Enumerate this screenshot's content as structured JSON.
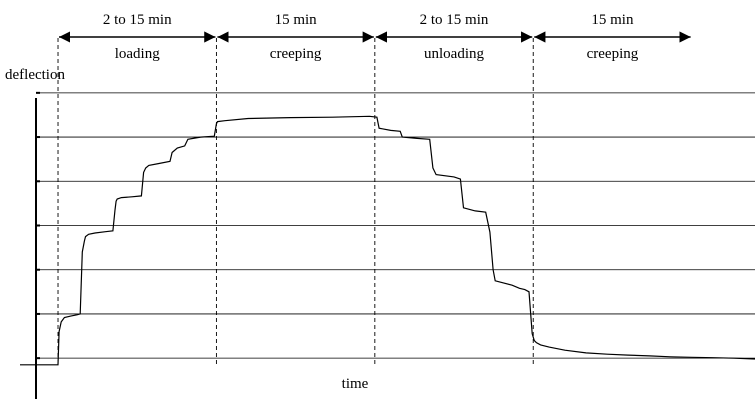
{
  "chart_data": {
    "type": "line",
    "title": "",
    "xlabel": "time",
    "ylabel": "deflection",
    "grid": true,
    "phases": [
      {
        "label": "loading",
        "duration": "2 to 15 min",
        "start": 0,
        "end": 15
      },
      {
        "label": "creeping",
        "duration": "15 min",
        "start": 15,
        "end": 30
      },
      {
        "label": "unloading",
        "duration": "2 to 15 min",
        "start": 30,
        "end": 45
      },
      {
        "label": "creeping",
        "duration": "15 min",
        "start": 45,
        "end": 60
      }
    ],
    "xlim": [
      -3.6,
      66
    ],
    "ylim": [
      -0.2,
      6.2
    ],
    "series": [
      {
        "x": [
          -3.6,
          0,
          0.1,
          0.3,
          0.6,
          1.2,
          1.8,
          2.1,
          2.3,
          2.5,
          2.6,
          2.9,
          3.5,
          4.5,
          5.2,
          5.4,
          5.5,
          5.6,
          6,
          7,
          7.9,
          8.1,
          8.3,
          8.6,
          9.5,
          10.6,
          10.8,
          11.3,
          12,
          12.3,
          13.5,
          14.8,
          15,
          15.1,
          15.8,
          18,
          22,
          26,
          29.5,
          30.2,
          30.4,
          31.5,
          32.4,
          32.6,
          34,
          35.2,
          35.5,
          35.8,
          37.5,
          38.1,
          38.4,
          39.5,
          40.5,
          40.9,
          41.2,
          41.4,
          43,
          43.7,
          44.2,
          44.6,
          44.9,
          45.1,
          45.3,
          45.7,
          46.5,
          48,
          50,
          52,
          54,
          56,
          58,
          60,
          62,
          64,
          66
        ],
        "y": [
          -0.15,
          -0.15,
          0.6,
          0.82,
          0.92,
          0.95,
          0.98,
          1.0,
          2.4,
          2.65,
          2.75,
          2.8,
          2.83,
          2.86,
          2.88,
          3.35,
          3.55,
          3.6,
          3.63,
          3.65,
          3.67,
          4.2,
          4.3,
          4.36,
          4.4,
          4.45,
          4.65,
          4.75,
          4.8,
          4.95,
          5.0,
          5.02,
          5.3,
          5.35,
          5.37,
          5.42,
          5.44,
          5.45,
          5.47,
          5.45,
          5.2,
          5.15,
          5.13,
          5.0,
          4.97,
          4.95,
          4.3,
          4.15,
          4.1,
          4.05,
          3.4,
          3.33,
          3.3,
          2.85,
          2.0,
          1.75,
          1.65,
          1.58,
          1.55,
          1.5,
          0.55,
          0.4,
          0.35,
          0.3,
          0.25,
          0.18,
          0.12,
          0.09,
          0.07,
          0.05,
          0.03,
          0.02,
          0.01,
          0.0,
          -0.02
        ]
      }
    ]
  }
}
